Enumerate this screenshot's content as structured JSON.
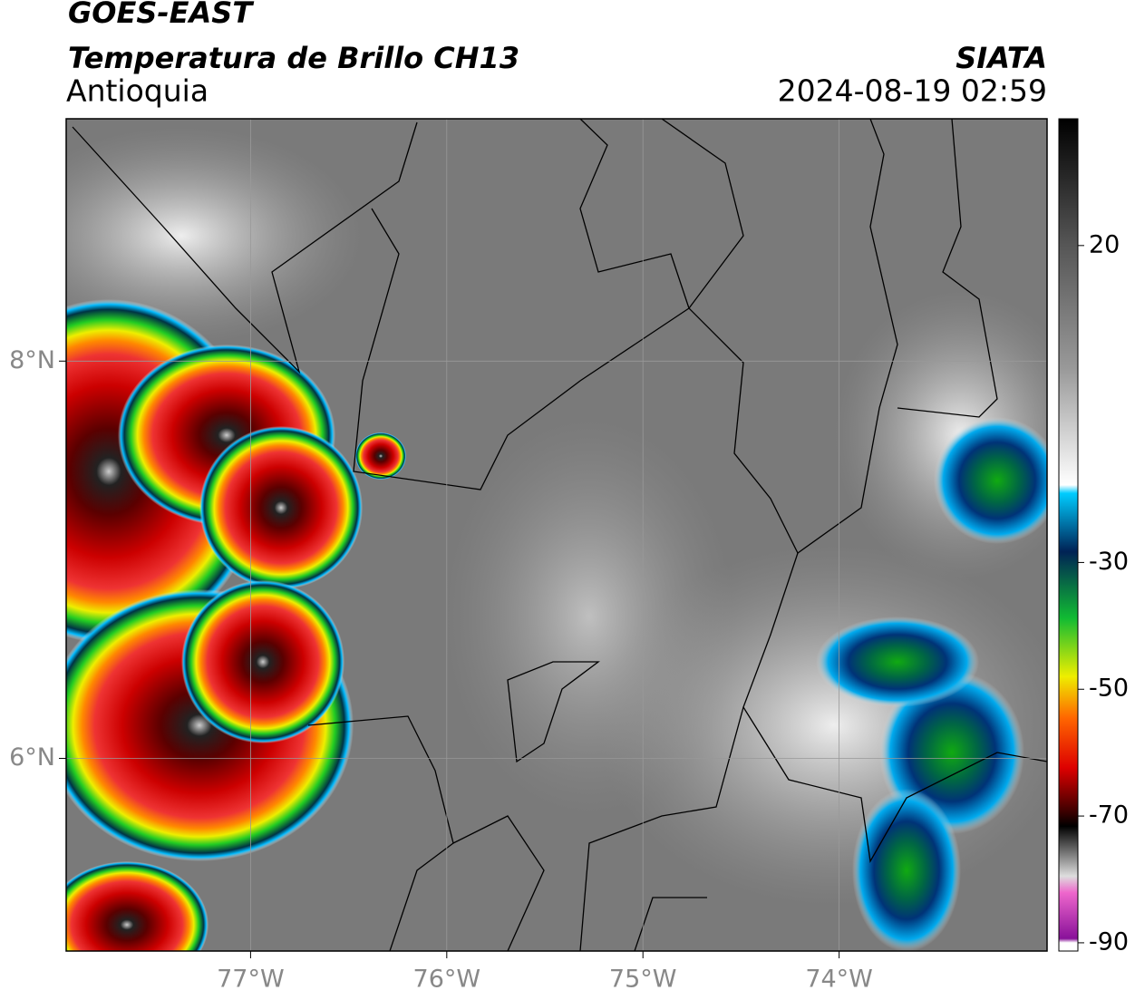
{
  "header": {
    "title": "GOES-EAST",
    "subtitle": "Temperatura de Brillo CH13",
    "region": "Antioquia",
    "source": "SIATA",
    "datetime": "2024-08-19 02:59"
  },
  "map": {
    "xlim": [
      -77.94,
      -72.94
    ],
    "ylim": [
      5.03,
      9.22
    ],
    "xticks": [
      {
        "value": -77,
        "label": "77°W"
      },
      {
        "value": -76,
        "label": "76°W"
      },
      {
        "value": -75,
        "label": "75°W"
      },
      {
        "value": -74,
        "label": "74°W"
      }
    ],
    "yticks": [
      {
        "value": 8,
        "label": "8°N"
      },
      {
        "value": 6,
        "label": "6°N"
      }
    ],
    "grid": true
  },
  "colorbar": {
    "lim": [
      40,
      -91.3
    ],
    "ticks": [
      20,
      -30,
      -50,
      -70,
      -90
    ]
  }
}
